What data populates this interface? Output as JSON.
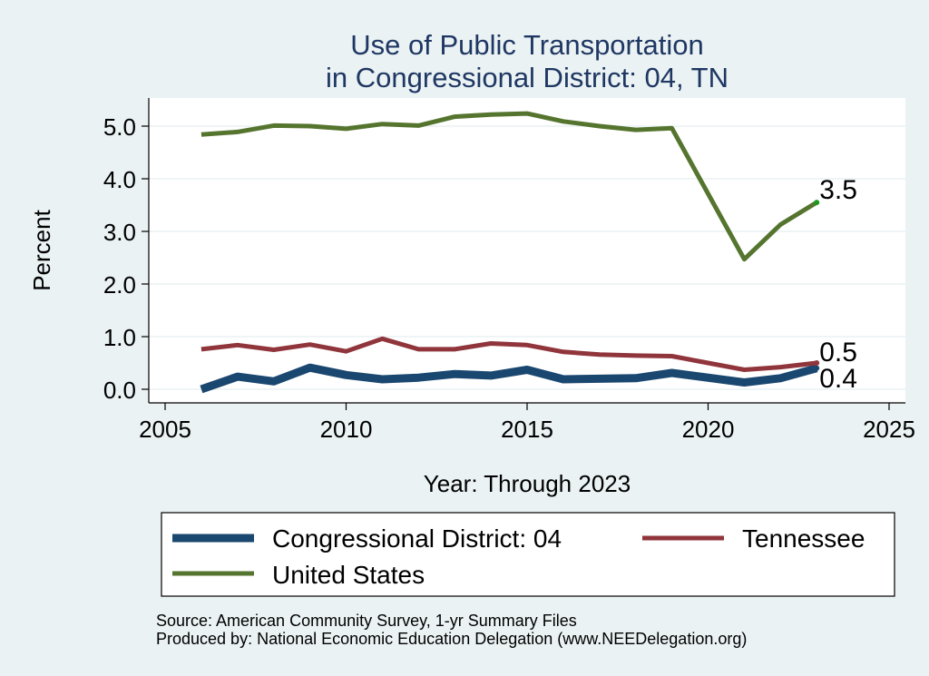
{
  "chart_data": {
    "type": "line",
    "title": [
      "Use of Public Transportation",
      "in Congressional District: 04, TN"
    ],
    "xlabel": "Year: Through 2023",
    "ylabel": "Percent",
    "xlim": [
      2005,
      2025
    ],
    "ylim": [
      0,
      5.2
    ],
    "xticks": [
      2005,
      2010,
      2015,
      2020,
      2025
    ],
    "yticks": [
      0,
      1,
      2,
      3,
      4,
      5
    ],
    "ytick_labels": [
      "0.0",
      "1.0",
      "2.0",
      "3.0",
      "4.0",
      "5.0"
    ],
    "grid": "horizontal",
    "x": [
      2006,
      2007,
      2008,
      2009,
      2010,
      2011,
      2012,
      2013,
      2014,
      2015,
      2016,
      2017,
      2018,
      2019,
      2021,
      2022,
      2023
    ],
    "series": [
      {
        "name": "Congressional District: 04",
        "color": "#1a476f",
        "values": [
          0.0,
          0.24,
          0.15,
          0.41,
          0.27,
          0.19,
          0.22,
          0.29,
          0.26,
          0.37,
          0.19,
          0.2,
          0.21,
          0.31,
          0.13,
          0.21,
          0.4
        ],
        "end_label": "0.4"
      },
      {
        "name": "Tennessee",
        "color": "#90353b",
        "values": [
          0.76,
          0.84,
          0.75,
          0.85,
          0.72,
          0.96,
          0.76,
          0.76,
          0.87,
          0.84,
          0.71,
          0.66,
          0.64,
          0.63,
          0.37,
          0.42,
          0.5
        ],
        "end_label": "0.5"
      },
      {
        "name": "United States",
        "color": "#55752f",
        "values": [
          4.84,
          4.89,
          5.01,
          5.0,
          4.95,
          5.04,
          5.01,
          5.18,
          5.22,
          5.24,
          5.09,
          5.0,
          4.93,
          4.96,
          2.47,
          3.13,
          3.55
        ],
        "end_label": "3.5"
      }
    ],
    "legend": {
      "placement": "bottom",
      "items": [
        "Congressional District: 04",
        "Tennessee",
        "United States"
      ]
    }
  },
  "notes": [
    "Source: American Community Survey, 1-yr Summary Files",
    "Produced by: National Economic Education Delegation (www.NEEDelegation.org)"
  ]
}
